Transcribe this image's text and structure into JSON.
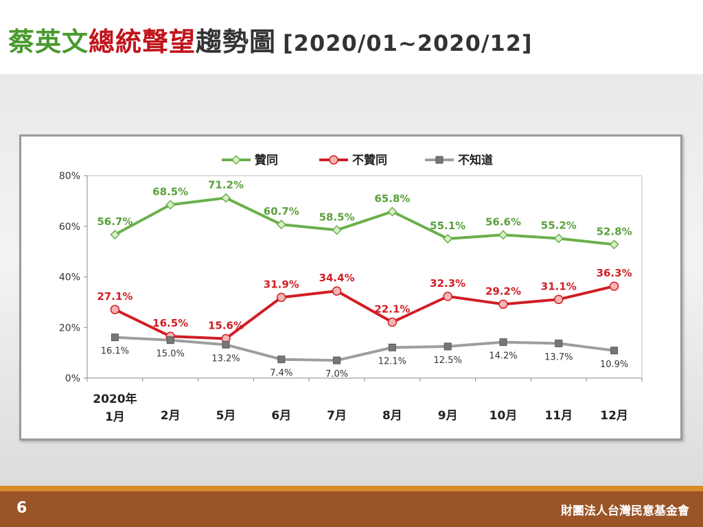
{
  "title": {
    "part1": "蔡英文",
    "part2": "總統聲望",
    "part3": "趨勢圖",
    "range": "[2020/01~2020/12]",
    "colors": {
      "part1": "#4a9a2e",
      "part2": "#c0141b",
      "part3": "#333333"
    }
  },
  "footer": {
    "page_number": "6",
    "organization": "財團法人台灣民意基金會"
  },
  "chart_data": {
    "type": "line",
    "categories": [
      "1月",
      "2月",
      "5月",
      "6月",
      "7月",
      "8月",
      "9月",
      "10月",
      "11月",
      "12月"
    ],
    "first_category_year": "2020年",
    "ylim": [
      0,
      80
    ],
    "y_ticks": [
      "0%",
      "20%",
      "40%",
      "60%",
      "80%"
    ],
    "y_tick_values": [
      0,
      20,
      40,
      60,
      80
    ],
    "grid": false,
    "legend_position": "top-center",
    "series": [
      {
        "name": "贊同",
        "color": "#6ab04c",
        "label_color": "#5aa03c",
        "marker": "diamond",
        "values": [
          56.7,
          68.5,
          71.2,
          60.7,
          58.5,
          65.8,
          55.1,
          56.6,
          55.2,
          52.8
        ],
        "labels": [
          "56.7%",
          "68.5%",
          "71.2%",
          "60.7%",
          "58.5%",
          "65.8%",
          "55.1%",
          "56.6%",
          "55.2%",
          "52.8%"
        ]
      },
      {
        "name": "不贊同",
        "color": "#d01e24",
        "label_color": "#d01e24",
        "marker": "circle",
        "values": [
          27.1,
          16.5,
          15.6,
          31.9,
          34.4,
          22.1,
          32.3,
          29.2,
          31.1,
          36.3
        ],
        "labels": [
          "27.1%",
          "16.5%",
          "15.6%",
          "31.9%",
          "34.4%",
          "22.1%",
          "32.3%",
          "29.2%",
          "31.1%",
          "36.3%"
        ]
      },
      {
        "name": "不知道",
        "color": "#9e9e9e",
        "label_color": "#333333",
        "marker": "square-x",
        "values": [
          16.1,
          15.0,
          13.2,
          7.4,
          7.0,
          12.1,
          12.5,
          14.2,
          13.7,
          10.9
        ],
        "labels": [
          "16.1%",
          "15.0%",
          "13.2%",
          "7.4%",
          "7.0%",
          "12.1%",
          "12.5%",
          "14.2%",
          "13.7%",
          "10.9%"
        ]
      }
    ]
  }
}
